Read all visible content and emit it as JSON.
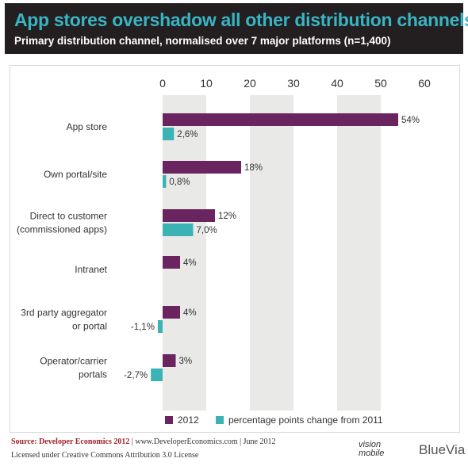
{
  "header": {
    "title": "App stores overshadow all other distribution channels",
    "subtitle": "Primary distribution channel, normalised over 7 major platforms (n=1,400)"
  },
  "colors": {
    "purple": "#6a2560",
    "teal": "#3bb3b5",
    "band": "#e9e9e8",
    "header_bg": "#231f20",
    "title": "#38b5c4"
  },
  "chart_data": {
    "type": "bar",
    "orientation": "horizontal",
    "x_ticks": [
      0,
      10,
      20,
      30,
      40,
      50,
      60
    ],
    "xlim": [
      0,
      60
    ],
    "grid": "alternating vertical bands",
    "legend_position": "bottom",
    "categories": [
      [
        "App store"
      ],
      [
        "Own portal/site"
      ],
      [
        "Direct to customer",
        "(commissioned apps)"
      ],
      [
        "Intranet"
      ],
      [
        "3rd party aggregator",
        "or portal"
      ],
      [
        "Operator/carrier",
        "portals"
      ]
    ],
    "series": [
      {
        "name": "2012",
        "color": "#6a2560",
        "values": [
          54,
          18,
          12,
          4,
          4,
          3
        ],
        "labels": [
          "54%",
          "18%",
          "12%",
          "4%",
          "4%",
          "3%"
        ]
      },
      {
        "name": "percentage points change from 2011",
        "color": "#3bb3b5",
        "values": [
          2.6,
          0.8,
          7.0,
          null,
          -1.1,
          -2.7
        ],
        "labels": [
          "2,6%",
          "0,8%",
          "7,0%",
          "",
          "-1,1%",
          "-2,7%"
        ]
      }
    ]
  },
  "footer": {
    "source_label": "Source: Developer Economics 2012",
    "source_rest": " | www.DeveloperEconomics.com | June 2012",
    "license": "Licensed under Creative Commons Attribution 3.0 License",
    "logo_vision_line1": "vision",
    "logo_vision_line2": "mobile",
    "logo_bluevia": "BlueVia"
  }
}
